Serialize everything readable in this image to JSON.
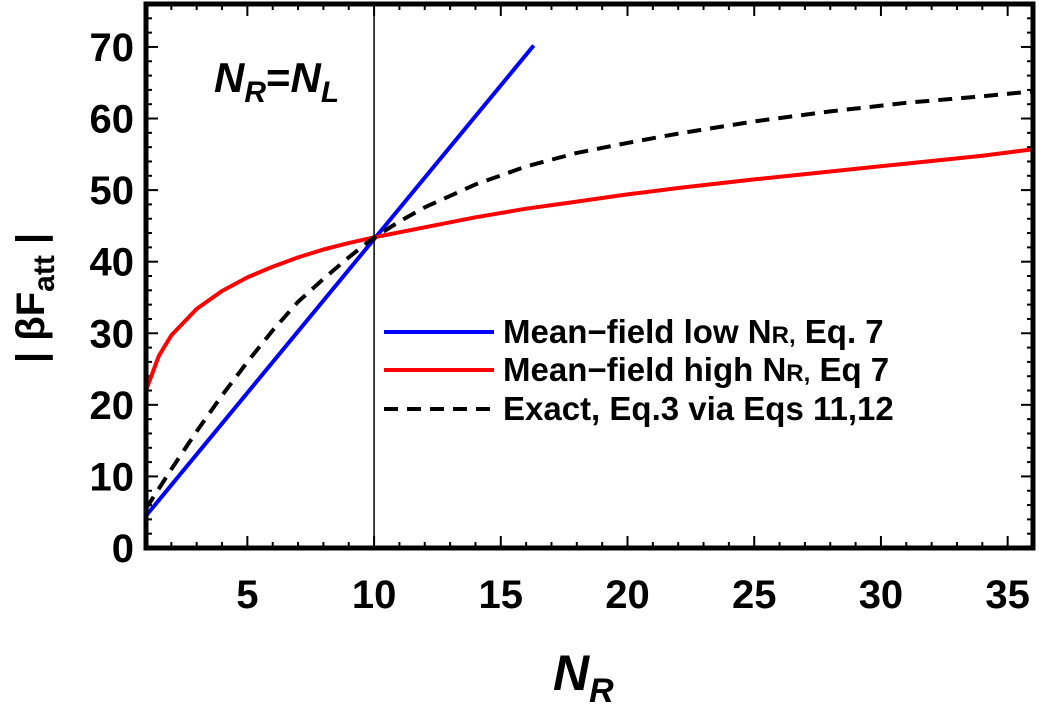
{
  "chart_data": {
    "type": "line",
    "xlabel": "N",
    "xlabel_sub": "R",
    "ylabel": "| βF",
    "ylabel_sub": "att",
    "ylabel_tail": " |",
    "xlim": [
      1,
      36
    ],
    "ylim": [
      0,
      76
    ],
    "xticks": [
      5,
      10,
      15,
      20,
      25,
      30,
      35
    ],
    "yticks": [
      0,
      10,
      20,
      30,
      40,
      50,
      60,
      70
    ],
    "grid": false,
    "legend_position": "right-middle",
    "annotation": {
      "x": 10,
      "lhs": "N",
      "lhs_sub": "R",
      "eq": "=",
      "rhs": "N",
      "rhs_sub": "L"
    },
    "series": [
      {
        "name_main": "Mean−field low N",
        "name_sub": "R,",
        "name_tail": " Eq. 7",
        "color": "#0000ff",
        "dash": "solid",
        "x": [
          1,
          16.3
        ],
        "y": [
          4.5,
          70.2
        ]
      },
      {
        "name_main": "Mean−field high N",
        "name_sub": "R,",
        "name_tail": " Eq 7",
        "color": "#ff0000",
        "dash": "solid",
        "x": [
          1,
          1.5,
          2,
          3,
          4,
          5,
          6,
          7,
          8,
          9,
          10,
          12,
          14,
          16,
          18,
          20,
          22,
          25,
          28,
          31,
          34,
          36
        ],
        "y": [
          22.0,
          26.8,
          29.7,
          33.4,
          35.9,
          37.8,
          39.3,
          40.6,
          41.7,
          42.6,
          43.4,
          44.8,
          46.2,
          47.4,
          48.4,
          49.4,
          50.3,
          51.5,
          52.6,
          53.7,
          54.8,
          55.7
        ]
      },
      {
        "name_main": "Exact, Eq.3 via Eqs 11,12",
        "name_sub": "",
        "name_tail": "",
        "color": "#000000",
        "dash": "dashed",
        "x": [
          1,
          2,
          3,
          4,
          5,
          6,
          7,
          8,
          9,
          10,
          11,
          12,
          14,
          16,
          18,
          20,
          22,
          25,
          28,
          31,
          34,
          36
        ],
        "y": [
          5.5,
          11.0,
          16.3,
          21.3,
          26.0,
          30.4,
          34.4,
          37.6,
          40.6,
          43.4,
          45.6,
          47.6,
          50.8,
          53.3,
          55.2,
          56.6,
          57.9,
          59.6,
          61.0,
          62.2,
          63.1,
          63.8
        ]
      }
    ]
  }
}
